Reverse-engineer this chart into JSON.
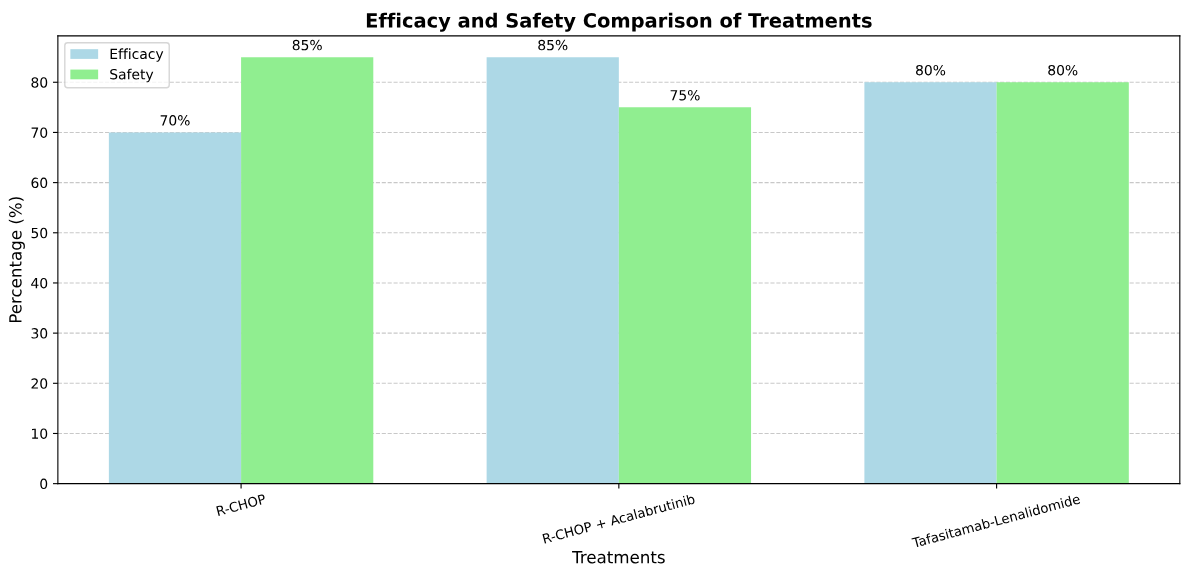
{
  "chart_data": {
    "type": "bar",
    "title": "Efficacy and Safety Comparison of Treatments",
    "xlabel": "Treatments",
    "ylabel": "Percentage (%)",
    "categories": [
      "R-CHOP",
      "R-CHOP + Acalabrutinib",
      "Tafasitamab-Lenalidomide"
    ],
    "series": [
      {
        "name": "Efficacy",
        "color": "#add8e6",
        "values": [
          70,
          85,
          80
        ],
        "value_labels": [
          "70%",
          "85%",
          "80%"
        ]
      },
      {
        "name": "Safety",
        "color": "#90ee90",
        "values": [
          85,
          75,
          80
        ],
        "value_labels": [
          "85%",
          "75%",
          "80%"
        ]
      }
    ],
    "ylim": [
      0,
      89.25
    ],
    "yticks": [
      0,
      10,
      20,
      30,
      40,
      50,
      60,
      70,
      80
    ],
    "grid": "y",
    "legend": "top left"
  }
}
